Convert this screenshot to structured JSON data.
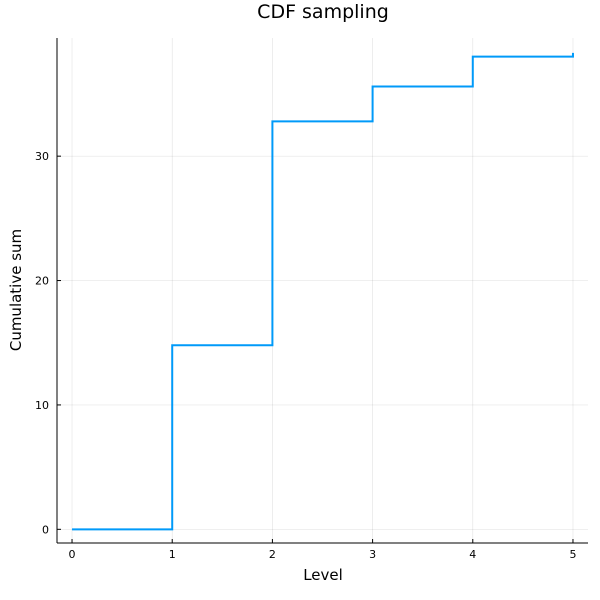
{
  "chart_data": {
    "type": "line",
    "step": "post",
    "title": "CDF sampling",
    "xlabel": "Level",
    "ylabel": "Cumulative sum",
    "xlim": [
      -0.15,
      5.15
    ],
    "ylim": [
      -1.1,
      39.5
    ],
    "xticks": [
      0,
      1,
      2,
      3,
      4,
      5
    ],
    "yticks": [
      0,
      10,
      20,
      30
    ],
    "grid": true,
    "legend": "none",
    "series": [
      {
        "color": "#009af9",
        "x": [
          0,
          1,
          2,
          3,
          4,
          5
        ],
        "y": [
          0,
          14.8,
          32.8,
          35.6,
          38.0,
          38.3
        ]
      }
    ]
  }
}
